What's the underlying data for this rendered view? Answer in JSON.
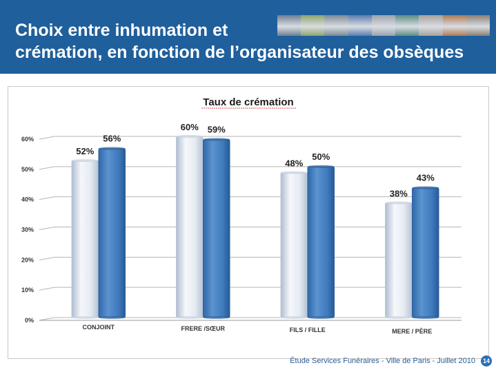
{
  "slide": {
    "title_line1": "Choix entre inhumation et",
    "title_line2": "crémation, en fonction de l’organisateur des obsèques",
    "photo_strip_colors": [
      "#6e7f94",
      "#8fa56b",
      "#7c8a96",
      "#5b7dae",
      "#9aa3ad",
      "#5e8d86",
      "#a7a39c",
      "#b07a52",
      "#8c7f74"
    ],
    "footer": "Étude Services Funéraires - Ville de Paris - Juillet 2010",
    "page_number": "14"
  },
  "chart_data": {
    "type": "bar",
    "title": "Taux de crémation",
    "categories": [
      "CONJOINT",
      "FRERE /SŒUR",
      "FILS / FILLE",
      "MERE / PÈRE"
    ],
    "series": [
      {
        "values": [
          52,
          60,
          48,
          38
        ],
        "labels": [
          "52%",
          "60%",
          "48%",
          "38%"
        ],
        "color": "#dfe6f0"
      },
      {
        "values": [
          56,
          59,
          50,
          43
        ],
        "labels": [
          "56%",
          "59%",
          "50%",
          "43%"
        ],
        "color": "#3f7cc0"
      }
    ],
    "ylim": [
      0,
      60
    ],
    "yticks": [
      "0%",
      "10%",
      "20%",
      "30%",
      "40%",
      "50%",
      "60%"
    ],
    "grid": true,
    "legend": "none"
  }
}
